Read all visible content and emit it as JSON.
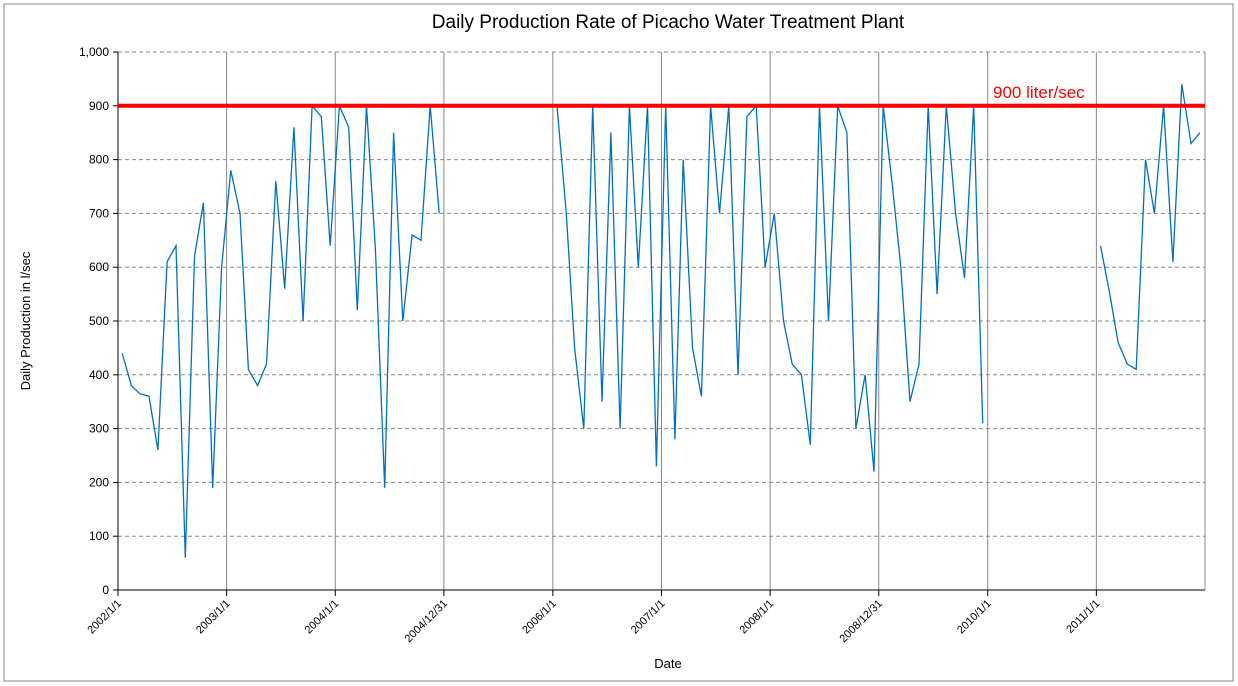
{
  "chart_data": {
    "type": "line",
    "title": "Daily Production Rate of Picacho Water Treatment Plant",
    "x_label": "Date",
    "y_label": "Daily Production in l/sec",
    "x": [
      "2002/1/15",
      "2002/2/15",
      "2002/3/15",
      "2002/4/15",
      "2002/5/15",
      "2002/6/15",
      "2002/7/15",
      "2002/8/15",
      "2002/9/15",
      "2002/10/15",
      "2002/11/15",
      "2002/12/15",
      "2003/1/15",
      "2003/2/15",
      "2003/3/15",
      "2003/4/15",
      "2003/5/15",
      "2003/6/15",
      "2003/7/15",
      "2003/8/15",
      "2003/9/15",
      "2003/10/15",
      "2003/11/15",
      "2003/12/15",
      "2004/1/15",
      "2004/2/15",
      "2004/3/15",
      "2004/4/15",
      "2004/5/15",
      "2004/6/15",
      "2004/7/15",
      "2004/8/15",
      "2004/9/15",
      "2004/10/15",
      "2004/11/15",
      "2004/12/15",
      "2005/6/15",
      "2006/1/15",
      "2006/2/15",
      "2006/3/15",
      "2006/4/15",
      "2006/5/15",
      "2006/6/15",
      "2006/7/15",
      "2006/8/15",
      "2006/9/15",
      "2006/10/15",
      "2006/11/15",
      "2006/12/15",
      "2007/1/15",
      "2007/2/15",
      "2007/3/15",
      "2007/4/15",
      "2007/5/15",
      "2007/6/15",
      "2007/7/15",
      "2007/8/15",
      "2007/9/15",
      "2007/10/15",
      "2007/11/15",
      "2007/12/15",
      "2008/1/15",
      "2008/2/15",
      "2008/3/15",
      "2008/4/15",
      "2008/5/15",
      "2008/6/15",
      "2008/7/15",
      "2008/8/15",
      "2008/9/15",
      "2008/10/15",
      "2008/11/15",
      "2008/12/15",
      "2009/1/15",
      "2009/2/15",
      "2009/3/15",
      "2009/4/15",
      "2009/5/15",
      "2009/6/15",
      "2009/7/15",
      "2009/8/15",
      "2009/9/15",
      "2009/10/15",
      "2009/11/15",
      "2009/12/15",
      "2010/6/15",
      "2011/1/15",
      "2011/2/15",
      "2011/3/15",
      "2011/4/15",
      "2011/5/15",
      "2011/6/15",
      "2011/7/15",
      "2011/8/15",
      "2011/9/15",
      "2011/10/15",
      "2011/11/15",
      "2011/12/15"
    ],
    "series": [
      {
        "name": "Daily Production",
        "color": "#0070c0",
        "values": [
          440,
          380,
          365,
          360,
          260,
          610,
          640,
          60,
          620,
          720,
          190,
          600,
          780,
          700,
          410,
          380,
          420,
          760,
          560,
          860,
          500,
          900,
          880,
          640,
          900,
          860,
          520,
          900,
          630,
          190,
          850,
          500,
          660,
          650,
          900,
          700,
          null,
          900,
          700,
          450,
          300,
          900,
          350,
          850,
          300,
          900,
          600,
          900,
          230,
          900,
          280,
          800,
          450,
          360,
          900,
          700,
          900,
          400,
          880,
          900,
          600,
          700,
          500,
          420,
          400,
          270,
          900,
          500,
          900,
          850,
          300,
          400,
          220,
          900,
          750,
          600,
          350,
          420,
          900,
          550,
          900,
          700,
          580,
          900,
          310,
          null,
          640,
          550,
          460,
          420,
          410,
          800,
          700,
          900,
          610,
          940,
          830,
          850
        ]
      }
    ],
    "xlim": [
      "2002/1/1",
      "2012/1/1"
    ],
    "xticks": [
      "2002/1/1",
      "2003/1/1",
      "2004/1/1",
      "2004/12/31",
      "2006/1/1",
      "2007/1/1",
      "2008/1/1",
      "2008/12/31",
      "2010/1/1",
      "2011/1/1"
    ],
    "ylim": [
      0,
      1000
    ],
    "yticks": [
      0,
      100,
      200,
      300,
      400,
      500,
      600,
      700,
      800,
      900,
      {
        "value": 1000,
        "label": "1,000"
      }
    ],
    "grid": true,
    "reference_line": {
      "value": 900,
      "label": "900 liter/sec",
      "color": "#ff0000"
    }
  }
}
